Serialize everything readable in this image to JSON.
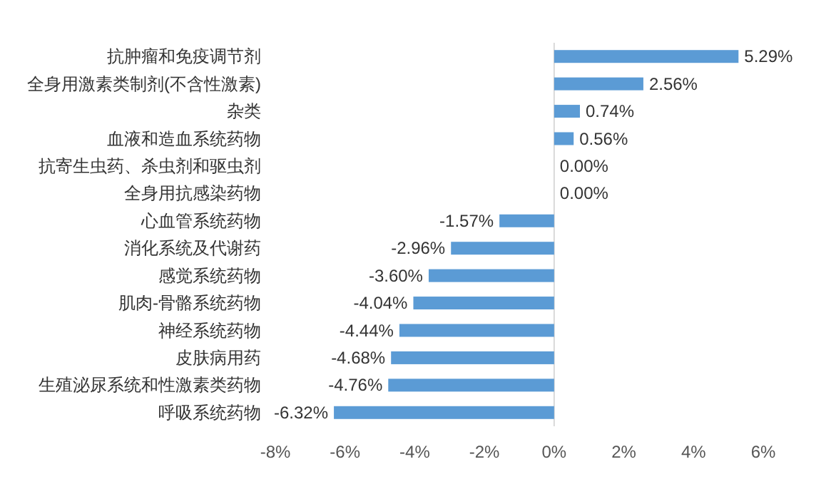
{
  "chart_data": {
    "type": "bar",
    "orientation": "horizontal",
    "categories": [
      "抗肿瘤和免疫调节剂",
      "全身用激素类制剂(不含性激素)",
      "杂类",
      "血液和造血系统药物",
      "抗寄生虫药、杀虫剂和驱虫剂",
      "全身用抗感染药物",
      "心血管系统药物",
      "消化系统及代谢药",
      "感觉系统药物",
      "肌肉-骨骼系统药物",
      "神经系统药物",
      "皮肤病用药",
      "生殖泌尿系统和性激素类药物",
      "呼吸系统药物"
    ],
    "values": [
      5.29,
      2.56,
      0.74,
      0.56,
      0.0,
      0.0,
      -1.57,
      -2.96,
      -3.6,
      -4.04,
      -4.44,
      -4.68,
      -4.76,
      -6.32
    ],
    "value_labels": [
      "5.29%",
      "2.56%",
      "0.74%",
      "0.56%",
      "0.00%",
      "0.00%",
      "-1.57%",
      "-2.96%",
      "-3.60%",
      "-4.04%",
      "-4.44%",
      "-4.68%",
      "-4.76%",
      "-6.32%"
    ],
    "color": "#5b9bd5",
    "xlim": [
      -8,
      6
    ],
    "xticks": [
      {
        "value": -8,
        "label": "-8%"
      },
      {
        "value": -6,
        "label": "-6%"
      },
      {
        "value": -4,
        "label": "-4%"
      },
      {
        "value": -2,
        "label": "-2%"
      },
      {
        "value": 0,
        "label": "0%"
      },
      {
        "value": 2,
        "label": "2%"
      },
      {
        "value": 4,
        "label": "4%"
      },
      {
        "value": 6,
        "label": "6%"
      }
    ]
  }
}
